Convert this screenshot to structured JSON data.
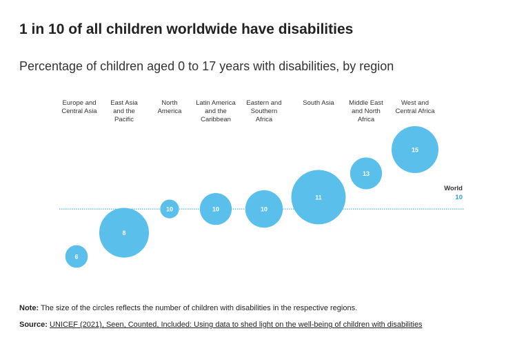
{
  "title": "1 in 10 of all children worldwide have disabilities",
  "subtitle": "Percentage of children aged 0 to 17 years with disabilities, by region",
  "chart_data": {
    "type": "scatter",
    "encoding": "bubble",
    "title": "",
    "xlabel": "",
    "ylabel": "",
    "y_unit": "percent",
    "categories": [
      [
        "Europe and",
        "Central Asia"
      ],
      [
        "East Asia",
        "and the",
        "Pacific"
      ],
      [
        "North",
        "America"
      ],
      [
        "Latin America",
        "and the",
        "Caribbean"
      ],
      [
        "Eastern and",
        "Southern",
        "Africa"
      ],
      [
        "South Asia"
      ],
      [
        "Middle East",
        "and North",
        "Africa"
      ],
      [
        "West and",
        "Central Africa"
      ]
    ],
    "values": [
      6,
      8,
      10,
      10,
      10,
      11,
      13,
      15
    ],
    "relative_bubble_size": [
      0.24,
      0.53,
      0.2,
      0.34,
      0.4,
      0.58,
      0.34,
      0.5
    ],
    "reference_line": {
      "label": "World",
      "value": 10
    },
    "ylim": [
      5.5,
      15.5
    ],
    "bubble_color": "#5bbfeb",
    "line_color": "#2a9fd6",
    "grid": false
  },
  "footer": {
    "note_label": "Note:",
    "note_text": " The size of the circles reflects the number of children with disabilities in the respective regions.",
    "source_label": "Source:",
    "source_text": "UNICEF (2021), Seen, Counted, Included: Using data to shed light on the well-being of children with disabilities"
  }
}
